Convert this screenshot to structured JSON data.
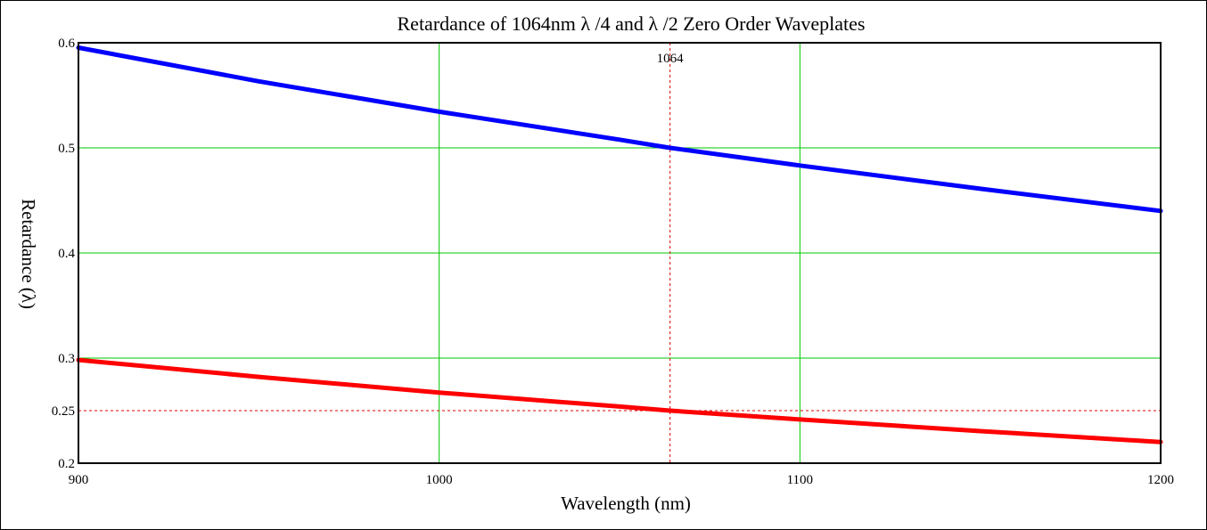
{
  "chart_data": {
    "type": "line",
    "title": "Retardance of 1064nm  λ /4 and  λ /2 Zero Order Waveplates",
    "xlabel": "Wavelength (nm)",
    "ylabel": "Retardance (λ)",
    "xlim": [
      900,
      1200
    ],
    "ylim": [
      0.2,
      0.6
    ],
    "x_ticks": [
      "900",
      "1000",
      "1100",
      "1200"
    ],
    "y_ticks": [
      "0.2",
      "0.25",
      "0.3",
      "0.4",
      "0.5",
      "0.6"
    ],
    "grid": true,
    "legend": "none",
    "colors": {
      "half_wave": "#0000ff",
      "quarter_wave": "#ff0000",
      "grid": "#00c800",
      "marker": "#e00000"
    },
    "markers": {
      "x_value": 1064,
      "x_label": "1064",
      "y_value": 0.25
    },
    "series": [
      {
        "color": "#0000ff",
        "x": [
          900,
          950,
          1000,
          1050,
          1064,
          1100,
          1150,
          1200
        ],
        "y": [
          0.5953,
          0.5633,
          0.5344,
          0.5078,
          0.5,
          0.4832,
          0.4611,
          0.44
        ]
      },
      {
        "color": "#ff0000",
        "x": [
          900,
          950,
          1000,
          1050,
          1064,
          1100,
          1150,
          1200
        ],
        "y": [
          0.2982,
          0.2821,
          0.2672,
          0.2539,
          0.25,
          0.2416,
          0.2305,
          0.2202
        ]
      }
    ]
  }
}
